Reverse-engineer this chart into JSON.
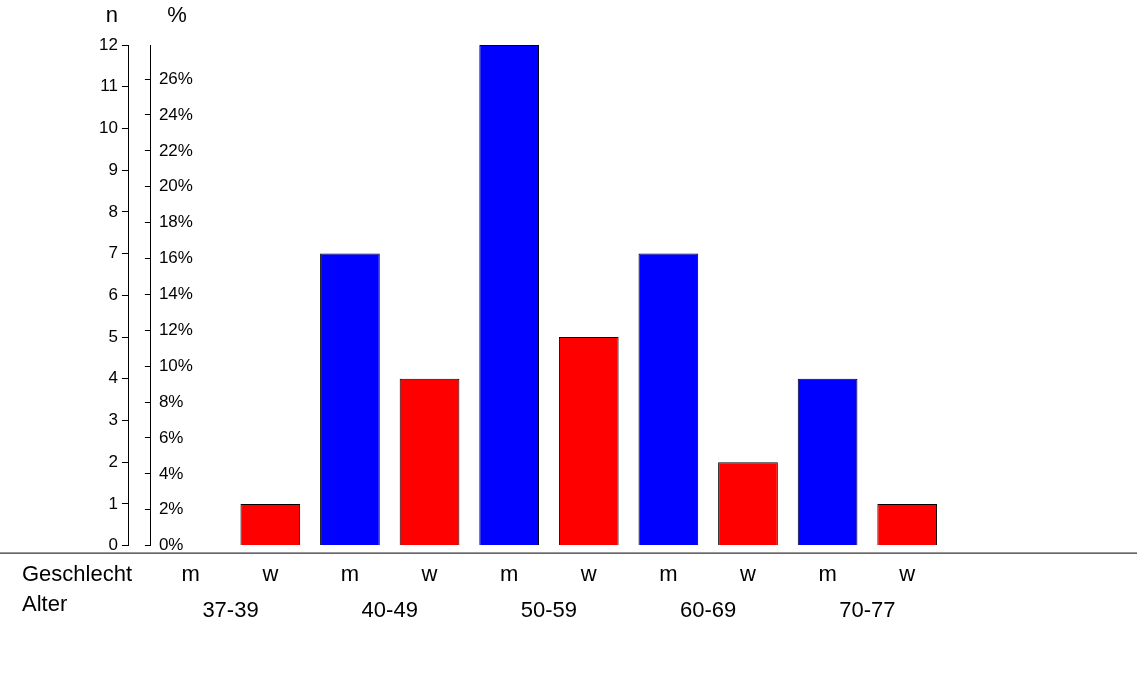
{
  "chart_data": {
    "type": "bar",
    "categories": [
      "37-39",
      "40-49",
      "50-59",
      "60-69",
      "70-77"
    ],
    "series": [
      {
        "name": "m",
        "color": "#0000ff",
        "values": [
          0,
          7,
          12,
          7,
          4
        ]
      },
      {
        "name": "w",
        "color": "#ff0000",
        "values": [
          1,
          4,
          5,
          2,
          1
        ]
      }
    ],
    "ylabel": "n",
    "y2label": "%",
    "xlabel": "Alter",
    "annotations": [
      "Geschlecht"
    ],
    "ylim": [
      0,
      12
    ],
    "yticks": [
      0,
      1,
      2,
      3,
      4,
      5,
      6,
      7,
      8,
      9,
      10,
      11,
      12
    ],
    "y2lim": [
      0,
      27.9
    ],
    "y2ticks": [
      {
        "value": 0,
        "label": "0%"
      },
      {
        "value": 2,
        "label": "2%"
      },
      {
        "value": 4,
        "label": "4%"
      },
      {
        "value": 6,
        "label": "6%"
      },
      {
        "value": 8,
        "label": "8%"
      },
      {
        "value": 10,
        "label": "10%"
      },
      {
        "value": 12,
        "label": "12%"
      },
      {
        "value": 14,
        "label": "14%"
      },
      {
        "value": 16,
        "label": "16%"
      },
      {
        "value": 18,
        "label": "18%"
      },
      {
        "value": 20,
        "label": "20%"
      },
      {
        "value": 22,
        "label": "22%"
      },
      {
        "value": 24,
        "label": "24%"
      },
      {
        "value": 26,
        "label": "26%"
      }
    ],
    "grid": false,
    "legend": false
  }
}
